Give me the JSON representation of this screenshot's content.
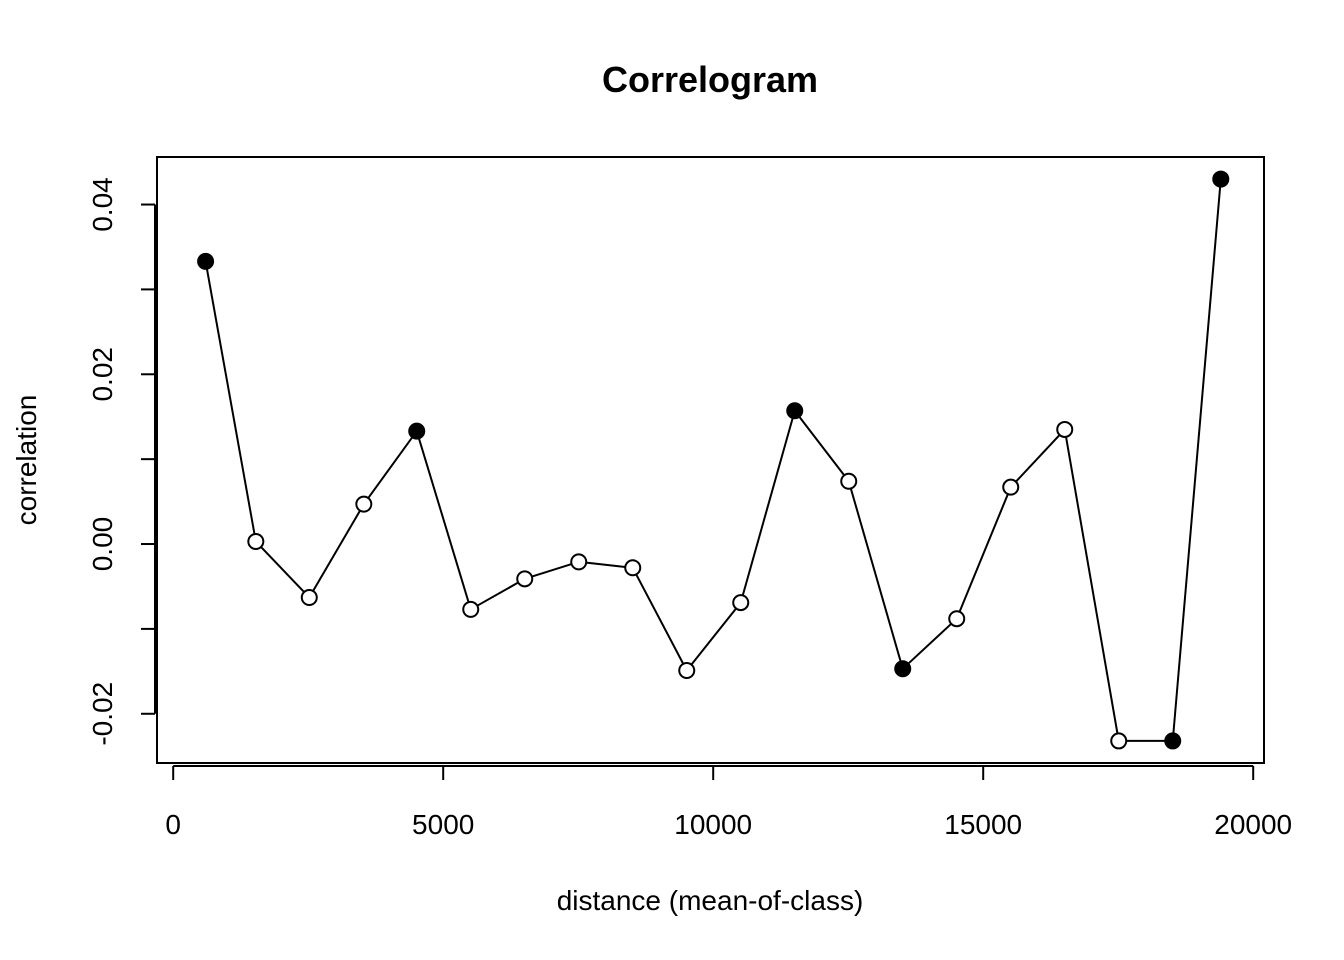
{
  "chart_data": {
    "type": "line",
    "title": "Correlogram",
    "xlabel": "distance (mean-of-class)",
    "ylabel": "correlation",
    "xlim": [
      -300,
      20200
    ],
    "ylim": [
      -0.0258,
      0.0456
    ],
    "xticks": [
      0,
      5000,
      10000,
      15000,
      20000
    ],
    "xtick_labels": [
      "0",
      "5000",
      "10000",
      "15000",
      "20000"
    ],
    "yticks": [
      -0.02,
      -0.01,
      0.0,
      0.01,
      0.02,
      0.03,
      0.04
    ],
    "ytick_labels": [
      "-0.02",
      "",
      "0.00",
      "",
      "0.02",
      "",
      "0.04"
    ],
    "grid": false,
    "series": [
      {
        "x": [
          600,
          1530,
          2520,
          3530,
          4510,
          5510,
          6510,
          7510,
          8510,
          9510,
          10510,
          11510,
          12510,
          13510,
          14510,
          15510,
          16510,
          17510,
          18510,
          19400
        ],
        "values": [
          0.0333,
          0.0003,
          -0.0063,
          0.0047,
          0.0133,
          -0.0077,
          -0.0041,
          -0.0021,
          -0.0028,
          -0.0149,
          -0.0069,
          0.0157,
          0.0074,
          -0.0147,
          -0.0088,
          0.0067,
          0.0135,
          -0.0232,
          -0.0232,
          0.043
        ],
        "significant": [
          true,
          false,
          false,
          false,
          true,
          false,
          false,
          false,
          false,
          false,
          false,
          true,
          false,
          true,
          false,
          false,
          false,
          false,
          true,
          true
        ]
      }
    ]
  }
}
